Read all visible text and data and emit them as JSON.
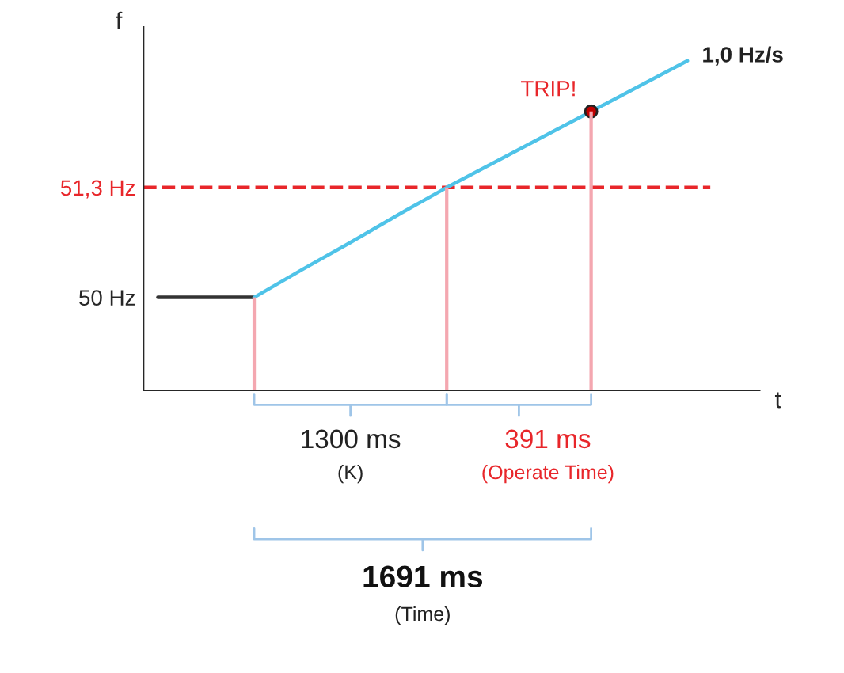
{
  "chart_data": {
    "type": "line",
    "ylabel": "f",
    "xlabel": "t",
    "categories": [
      null,
      null,
      null,
      null,
      null,
      null,
      null,
      null,
      null,
      null,
      null,
      null,
      null
    ],
    "series": [
      {
        "color": "#333333",
        "values": [
          50,
          50,
          50,
          null,
          null,
          null,
          null,
          null,
          null,
          null,
          null,
          null,
          null
        ]
      },
      {
        "color": "#4fc3e8",
        "values": [
          null,
          null,
          50,
          50.33,
          50.65,
          50.98,
          51.3,
          51.6,
          51.9,
          52.2,
          52.5,
          52.8,
          null
        ]
      },
      {
        "type": "bar",
        "color": "#f4a7b0",
        "base": [
          null,
          null,
          48.9,
          null,
          null,
          null,
          48.9,
          null,
          null,
          48.9,
          null,
          null,
          null
        ],
        "values": [
          null,
          null,
          1.1,
          null,
          null,
          null,
          2.4,
          null,
          null,
          3.3,
          null,
          null,
          null
        ]
      },
      {
        "type": "scatter",
        "color": "#c00000",
        "values": [
          null,
          null,
          null,
          null,
          null,
          null,
          null,
          null,
          null,
          52.2,
          null,
          null,
          null
        ]
      }
    ],
    "ylim": [
      48.9,
      53.2
    ],
    "yticks": [
      {
        "value": 50,
        "label": "50 Hz"
      },
      {
        "value": 51.3,
        "label": "51,3 Hz"
      }
    ],
    "ref_lines": [
      {
        "axis": "y",
        "value": 51.3,
        "color": "#e8262a",
        "line_style": "dashed"
      }
    ],
    "annotations": [
      "TRIP!",
      "1,0 Hz/s",
      "1300 ms",
      "(K)",
      "391 ms",
      "(Operate Time)",
      "1691 ms",
      "(Time)"
    ],
    "grid": false,
    "legend": false,
    "line_style": "solid"
  }
}
